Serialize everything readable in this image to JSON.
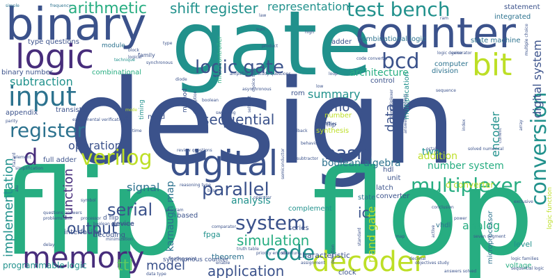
{
  "palette": {
    "navy": "#3b528b",
    "teal": "#21918c",
    "green": "#27ad81",
    "lime": "#bddf26",
    "purple": "#440154",
    "indigo": "#472d7b",
    "blue": "#2c728e",
    "light_green": "#5ec962"
  },
  "words": [
    {
      "text": "design"
    },
    {
      "text": "flip"
    },
    {
      "text": "flop"
    },
    {
      "text": "gate"
    },
    {
      "text": "binary"
    },
    {
      "text": "counter"
    },
    {
      "text": "logic"
    },
    {
      "text": "digital"
    },
    {
      "text": "decoder"
    },
    {
      "text": "memory"
    },
    {
      "text": "input"
    },
    {
      "text": "bit"
    },
    {
      "text": "multiplexer"
    },
    {
      "text": "register"
    },
    {
      "text": "verilog"
    },
    {
      "text": "logic gate"
    },
    {
      "text": "system"
    },
    {
      "text": "parallel"
    },
    {
      "text": "test bench"
    },
    {
      "text": "shift register"
    },
    {
      "text": "arithmetic"
    },
    {
      "text": "representation"
    },
    {
      "text": "code"
    },
    {
      "text": "basic"
    },
    {
      "text": "bcd"
    },
    {
      "text": "sequential"
    },
    {
      "text": "simulation"
    },
    {
      "text": "conversion"
    },
    {
      "text": "output"
    },
    {
      "text": "serial"
    },
    {
      "text": "application"
    },
    {
      "text": "model"
    },
    {
      "text": "operation"
    },
    {
      "text": "implementation"
    },
    {
      "text": "ttl"
    },
    {
      "text": "function"
    },
    {
      "text": "encoder"
    },
    {
      "text": "analog"
    },
    {
      "text": "summary"
    },
    {
      "text": "data"
    },
    {
      "text": "subtraction"
    },
    {
      "text": "d"
    },
    {
      "text": "cmo"
    },
    {
      "text": "ic"
    },
    {
      "text": "number system"
    },
    {
      "text": "karnaugh map"
    },
    {
      "text": "signal"
    },
    {
      "text": "digital system"
    },
    {
      "text": "boolean algebra"
    },
    {
      "text": "architecture"
    },
    {
      "text": "two"
    },
    {
      "text": "addition"
    },
    {
      "text": "analysis"
    },
    {
      "text": "d converter"
    },
    {
      "text": "nand gate"
    },
    {
      "text": "combinational logic"
    },
    {
      "text": "programmable logic"
    },
    {
      "text": "binary number"
    },
    {
      "text": "type questions"
    },
    {
      "text": "combinational"
    },
    {
      "text": "state machine"
    },
    {
      "text": "integrated"
    },
    {
      "text": "statement"
    },
    {
      "text": "theorem"
    },
    {
      "text": "characteristic"
    },
    {
      "text": "fpga"
    },
    {
      "text": "full adder"
    },
    {
      "text": "synchronous counter"
    },
    {
      "text": "microcontroller"
    },
    {
      "text": "voltage"
    },
    {
      "text": "level"
    },
    {
      "text": "vhdl"
    },
    {
      "text": "microprocessor"
    },
    {
      "text": "interfacing"
    },
    {
      "text": "converter"
    },
    {
      "text": "appendix"
    },
    {
      "text": "transistor"
    },
    {
      "text": "division"
    },
    {
      "text": "computer"
    },
    {
      "text": "adder"
    },
    {
      "text": "rom"
    },
    {
      "text": "based"
    },
    {
      "text": "clock"
    },
    {
      "text": "complement"
    },
    {
      "text": "state"
    },
    {
      "text": "series"
    },
    {
      "text": "hdl"
    },
    {
      "text": "unit"
    },
    {
      "text": "synthesis"
    },
    {
      "text": "number"
    },
    {
      "text": "control"
    },
    {
      "text": "multiplication"
    },
    {
      "text": "logic function"
    },
    {
      "text": "decoding"
    },
    {
      "text": "method"
    },
    {
      "text": "timing"
    },
    {
      "text": "device"
    },
    {
      "text": "nand"
    },
    {
      "text": "latch"
    },
    {
      "text": "jk flip"
    },
    {
      "text": "d flip"
    },
    {
      "text": "module"
    },
    {
      "text": "family"
    },
    {
      "text": "simple"
    },
    {
      "text": "frequency"
    },
    {
      "text": "law"
    },
    {
      "text": "ram"
    },
    {
      "text": "code converter"
    },
    {
      "text": "latches"
    },
    {
      "text": "low"
    },
    {
      "text": "high"
    },
    {
      "text": "sum"
    },
    {
      "text": "product"
    },
    {
      "text": "type"
    },
    {
      "text": "block"
    },
    {
      "text": "logical"
    },
    {
      "text": "technique"
    },
    {
      "text": "logic device"
    },
    {
      "text": "generator"
    },
    {
      "text": "loop"
    },
    {
      "text": "sequence"
    },
    {
      "text": "index"
    },
    {
      "text": "experimental verification"
    },
    {
      "text": "parity"
    },
    {
      "text": "asynchronous"
    },
    {
      "text": "one"
    },
    {
      "text": "self test"
    },
    {
      "text": "boolean"
    },
    {
      "text": "switching"
    },
    {
      "text": "feedback"
    },
    {
      "text": "amplifier"
    },
    {
      "text": "diode"
    },
    {
      "text": "behavior"
    },
    {
      "text": "mode"
    },
    {
      "text": "time"
    },
    {
      "text": "table"
    },
    {
      "text": "description"
    },
    {
      "text": "review questions"
    },
    {
      "text": "semiconductor"
    },
    {
      "text": "subtractor"
    },
    {
      "text": "demultiplexer"
    },
    {
      "text": "answers reasoning"
    },
    {
      "text": "solved numerical"
    },
    {
      "text": "octal"
    },
    {
      "text": "power"
    },
    {
      "text": "current"
    },
    {
      "text": "seven segment"
    },
    {
      "text": "conclusion"
    },
    {
      "text": "exclusive"
    },
    {
      "text": "simplification"
    },
    {
      "text": "hazard"
    },
    {
      "text": "element"
    },
    {
      "text": "questions answers"
    },
    {
      "text": "problems unit"
    },
    {
      "text": "processor"
    },
    {
      "text": "delay"
    },
    {
      "text": "minimization"
    },
    {
      "text": "boolean expression"
    },
    {
      "text": "program"
    },
    {
      "text": "reasoning type"
    },
    {
      "text": "comparator"
    },
    {
      "text": "enable"
    },
    {
      "text": "truth table"
    },
    {
      "text": "operator"
    },
    {
      "text": "priority encoder"
    },
    {
      "text": "floating point"
    },
    {
      "text": "data type"
    },
    {
      "text": "structure"
    },
    {
      "text": "assignment"
    },
    {
      "text": "definition"
    },
    {
      "text": "standard"
    },
    {
      "text": "map"
    },
    {
      "text": "active"
    },
    {
      "text": "decimal"
    },
    {
      "text": "objectives study"
    },
    {
      "text": "sequential logic"
    },
    {
      "text": "logic families"
    },
    {
      "text": "answers solved"
    },
    {
      "text": "alu"
    },
    {
      "text": "symbol"
    },
    {
      "text": "base"
    },
    {
      "text": "study questions"
    },
    {
      "text": "choice type"
    },
    {
      "text": "array"
    },
    {
      "text": "multiple choice"
    },
    {
      "text": "synchronous"
    },
    {
      "text": "memories"
    }
  ]
}
